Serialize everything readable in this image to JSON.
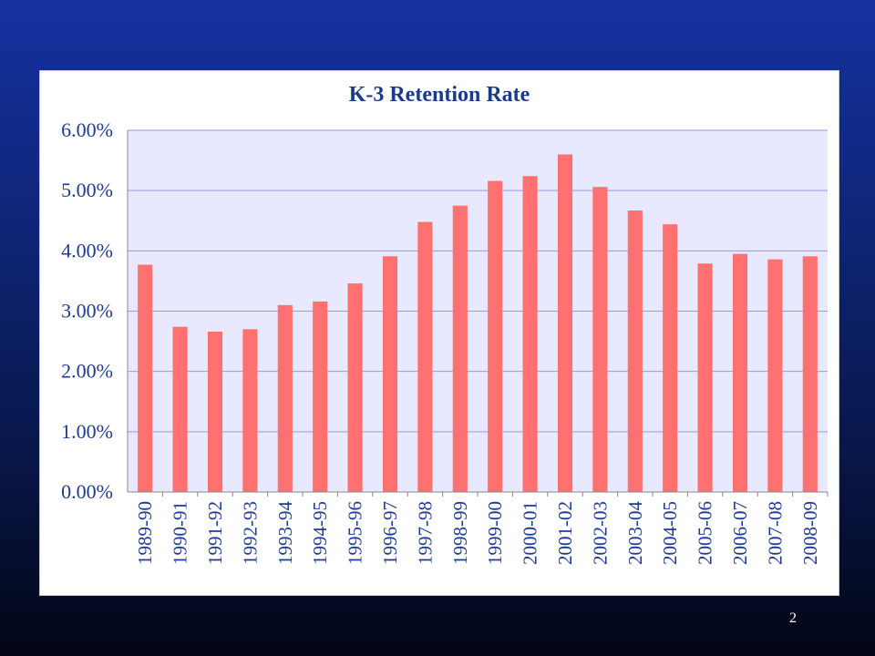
{
  "slide": {
    "page_number": "2"
  },
  "chart_data": {
    "type": "bar",
    "title": "K-3 Retention Rate",
    "xlabel": "",
    "ylabel": "",
    "ylim": [
      0,
      6
    ],
    "yticks": [
      "0.00%",
      "1.00%",
      "2.00%",
      "3.00%",
      "4.00%",
      "5.00%",
      "6.00%"
    ],
    "grid": true,
    "legend": "none",
    "categories": [
      "1989-90",
      "1990-91",
      "1991-92",
      "1992-93",
      "1993-94",
      "1994-95",
      "1995-96",
      "1996-97",
      "1997-98",
      "1998-99",
      "1999-00",
      "2000-01",
      "2001-02",
      "2002-03",
      "2003-04",
      "2004-05",
      "2005-06",
      "2006-07",
      "2007-08",
      "2008-09"
    ],
    "values": [
      3.77,
      2.74,
      2.66,
      2.7,
      3.1,
      3.16,
      3.46,
      3.91,
      4.48,
      4.75,
      5.16,
      5.24,
      5.6,
      5.06,
      4.67,
      4.44,
      3.79,
      3.95,
      3.86,
      3.91
    ],
    "colors": {
      "bar": "#ff7070",
      "plot_bg": "#e8e8ff",
      "grid": "#9a9ad8",
      "text": "#1f3a93"
    }
  }
}
